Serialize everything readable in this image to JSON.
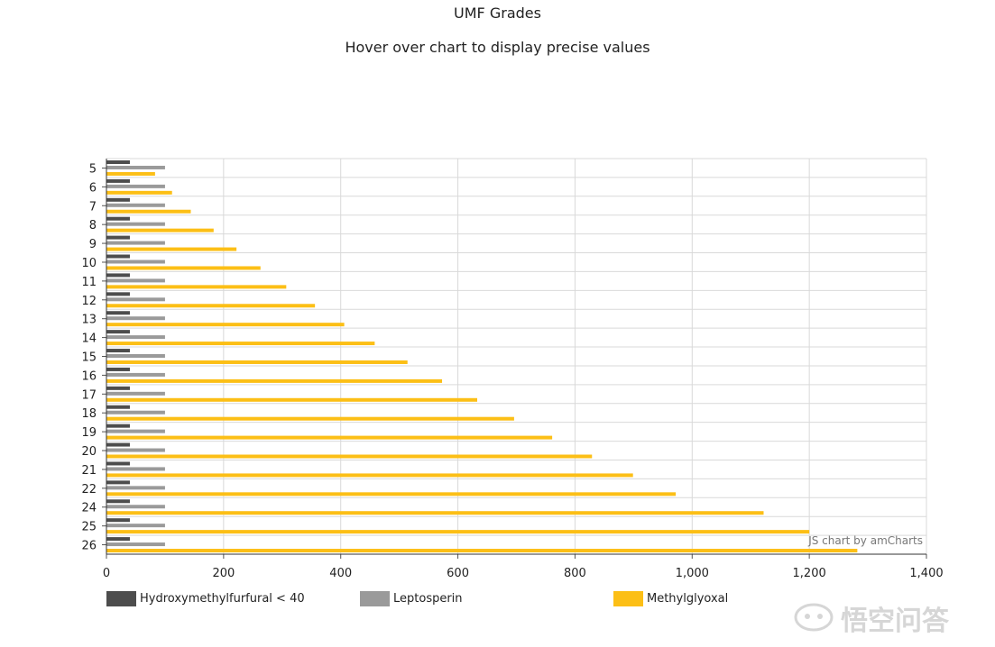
{
  "chart_data": {
    "type": "bar",
    "orientation": "horizontal",
    "title": "UMF Grades",
    "subtitle": "Hover over chart to display precise values",
    "categories": [
      "5",
      "6",
      "7",
      "8",
      "9",
      "10",
      "11",
      "12",
      "13",
      "14",
      "15",
      "16",
      "17",
      "18",
      "19",
      "20",
      "21",
      "22",
      "24",
      "25",
      "26"
    ],
    "series": [
      {
        "name": "Hydroxymethylfurfural < 40",
        "color": "#4d4d4d",
        "values": [
          40,
          40,
          40,
          40,
          40,
          40,
          40,
          40,
          40,
          40,
          40,
          40,
          40,
          40,
          40,
          40,
          40,
          40,
          40,
          40,
          40
        ]
      },
      {
        "name": "Leptosperin",
        "color": "#9a9a9a",
        "values": [
          100,
          100,
          100,
          100,
          100,
          100,
          100,
          100,
          100,
          100,
          100,
          100,
          100,
          100,
          100,
          100,
          100,
          100,
          100,
          100,
          100
        ]
      },
      {
        "name": "Methylglyoxal",
        "color": "#fcbf16",
        "values": [
          83,
          112,
          144,
          183,
          222,
          263,
          307,
          356,
          406,
          458,
          514,
          573,
          633,
          696,
          761,
          829,
          899,
          972,
          1122,
          1200,
          1282
        ]
      }
    ],
    "xlim": [
      0,
      1400
    ],
    "xticks": [
      0,
      200,
      400,
      600,
      800,
      1000,
      1200,
      1400
    ],
    "xtick_labels": [
      "0",
      "200",
      "400",
      "600",
      "800",
      "1,000",
      "1,200",
      "1,400"
    ],
    "credit": "JS chart by amCharts",
    "legend_position": "bottom",
    "grid": true
  },
  "watermark": "悟空问答"
}
